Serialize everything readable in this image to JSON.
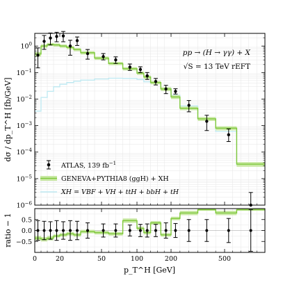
{
  "chart_data": {
    "type": "line",
    "x": {
      "label": "p_T^H [GeV]",
      "tick_values": [
        0,
        20,
        50,
        100,
        200,
        500
      ],
      "tick_labels": [
        "0",
        "20",
        "50",
        "100",
        "200",
        "500"
      ]
    },
    "bin_edges": [
      0,
      5,
      10,
      15,
      20,
      25,
      30,
      35,
      45,
      60,
      80,
      100,
      120,
      140,
      170,
      200,
      250,
      350,
      450,
      650,
      1000
    ],
    "panels": [
      {
        "name": "main",
        "scale": "log",
        "ylabel": "dσ / dp_T^H [fb/GeV]",
        "ylim": [
          1e-06,
          3
        ],
        "y_tick_exponents": [
          -6,
          -5,
          -4,
          -3,
          -2,
          -1,
          0
        ],
        "y_tick_labels": [
          "10",
          "10",
          "10",
          "10",
          "10",
          "10",
          "10"
        ],
        "y_tick_superscripts": [
          "−6",
          "−5",
          "−4",
          "−3",
          "−2",
          "−1",
          "0"
        ],
        "annotation_lines": [
          "pp → (H → γγ) + X",
          "√S = 13 TeV   rEFT"
        ],
        "legend": {
          "placement": "lower-left",
          "entries": [
            {
              "label": "ATLAS, 139 fb",
              "sup": "−1",
              "style": "errorbar",
              "color": "#000000"
            },
            {
              "label": "GENEVA+PYTHIA8 (ggH) + XH",
              "style": "band",
              "color": "#7ec73a",
              "band_color": "#c9e8a4"
            },
            {
              "label": "XH = VBF + VH + ttH + bbH + tH",
              "style": "line",
              "color": "#bde9f2"
            }
          ]
        },
        "series": [
          {
            "name": "ATLAS, 139 fb⁻¹",
            "kind": "points",
            "x": [
              2.5,
              7.5,
              12.5,
              17.5,
              22.5,
              27.5,
              32.5,
              40,
              52.5,
              70,
              90,
              110,
              130,
              155,
              185,
              225,
              300,
              400,
              550,
              825
            ],
            "y": [
              0.45,
              1.5,
              2.0,
              2.3,
              2.4,
              1.0,
              1.6,
              0.52,
              0.4,
              0.3,
              0.16,
              0.13,
              0.075,
              0.046,
              0.024,
              0.0195,
              0.0058,
              0.00145,
              0.00045,
              1e-06
            ],
            "err_low": [
              0.3,
              0.75,
              0.9,
              0.85,
              0.95,
              0.55,
              0.55,
              0.2,
              0.1,
              0.08,
              0.04,
              0.03,
              0.02,
              0.012,
              0.008,
              0.004,
              0.0025,
              0.0008,
              0.0002,
              0
            ],
            "err_high": [
              0.4,
              1.0,
              1.1,
              1.0,
              1.15,
              0.65,
              0.6,
              0.22,
              0.12,
              0.09,
              0.05,
              0.035,
              0.025,
              0.014,
              0.009,
              0.005,
              0.003,
              0.001,
              0.0003,
              2e-06
            ],
            "color": "#000000"
          },
          {
            "name": "GENEVA+PYTHIA8 (ggH) + XH",
            "kind": "step-band",
            "y": [
              0.5,
              1.0,
              1.15,
              1.1,
              1.0,
              0.88,
              0.74,
              0.56,
              0.35,
              0.22,
              0.14,
              0.095,
              0.068,
              0.042,
              0.024,
              0.012,
              0.0045,
              0.0018,
              0.0008,
              3.5e-05
            ],
            "band_low": [
              0.4,
              0.85,
              1.0,
              0.95,
              0.86,
              0.76,
              0.64,
              0.48,
              0.3,
              0.19,
              0.12,
              0.082,
              0.058,
              0.036,
              0.02,
              0.01,
              0.0038,
              0.0015,
              0.00066,
              2.8e-05
            ],
            "band_high": [
              0.6,
              1.15,
              1.3,
              1.25,
              1.14,
              1.0,
              0.84,
              0.64,
              0.4,
              0.25,
              0.16,
              0.108,
              0.078,
              0.048,
              0.028,
              0.014,
              0.0052,
              0.0021,
              0.00094,
              4.2e-05
            ],
            "color": "#7ec73a",
            "band_color": "#c9e8a4"
          },
          {
            "name": "XH = VBF + VH + ttH + bbH + tH",
            "kind": "step",
            "y": [
              0.0035,
              0.0115,
              0.0195,
              0.029,
              0.036,
              0.042,
              0.047,
              0.052,
              0.057,
              0.061,
              0.06,
              0.055,
              0.045,
              0.038,
              0.026,
              0.014,
              0.0055,
              0.0019,
              0.0006,
              3.3e-05
            ],
            "color": "#bde9f2"
          }
        ]
      },
      {
        "name": "ratio",
        "scale": "linear",
        "ylabel": "ratio − 1",
        "ylim": [
          -1,
          1
        ],
        "y_tick_values": [
          0.5,
          0,
          -0.5
        ],
        "y_tick_labels": [
          "0.5",
          "0.0",
          "−0.5"
        ],
        "series": [
          {
            "name": "ATLAS / GENEVA − 1",
            "kind": "points",
            "x": [
              2.5,
              7.5,
              12.5,
              17.5,
              22.5,
              27.5,
              32.5,
              40,
              52.5,
              70,
              90,
              110,
              130,
              155,
              185,
              225,
              300,
              400,
              550,
              825
            ],
            "y": [
              0,
              0,
              0,
              0,
              0,
              0,
              0,
              0,
              0,
              0,
              0,
              0,
              0,
              0,
              0,
              0,
              0,
              0,
              0,
              0
            ],
            "err_low": [
              0.45,
              0.42,
              0.4,
              0.45,
              0.4,
              0.45,
              0.42,
              0.35,
              0.3,
              0.3,
              0.25,
              0.28,
              0.3,
              0.28,
              0.35,
              0.32,
              0.5,
              0.5,
              0.55,
              0.95
            ],
            "err_high": [
              0.45,
              0.42,
              0.4,
              0.45,
              0.4,
              0.45,
              0.42,
              0.35,
              0.3,
              0.3,
              0.25,
              0.28,
              0.3,
              0.28,
              0.35,
              0.32,
              0.5,
              0.5,
              0.55,
              0.95
            ],
            "color": "#000000"
          },
          {
            "name": "GENEVA+PYTHIA8 (ggH) + XH",
            "kind": "step-band",
            "y": [
              -0.35,
              -0.4,
              -0.35,
              -0.25,
              -0.2,
              -0.15,
              -0.2,
              -0.05,
              -0.1,
              -0.15,
              0.45,
              0.1,
              -0.1,
              0.35,
              -0.2,
              0.55,
              0.8,
              0.95,
              0.8,
              0.95
            ],
            "band_low": [
              -0.45,
              -0.5,
              -0.45,
              -0.32,
              -0.28,
              -0.23,
              -0.28,
              -0.13,
              -0.18,
              -0.23,
              0.35,
              0.02,
              -0.18,
              0.27,
              -0.28,
              0.47,
              0.7,
              0.9,
              0.7,
              0.9
            ],
            "band_high": [
              -0.25,
              -0.3,
              -0.25,
              -0.18,
              -0.12,
              -0.07,
              -0.12,
              0.03,
              -0.02,
              -0.07,
              0.55,
              0.18,
              -0.02,
              0.43,
              -0.12,
              0.63,
              0.9,
              1.0,
              0.9,
              1.0
            ],
            "color": "#7ec73a",
            "band_color": "#c9e8a4"
          }
        ]
      }
    ]
  }
}
